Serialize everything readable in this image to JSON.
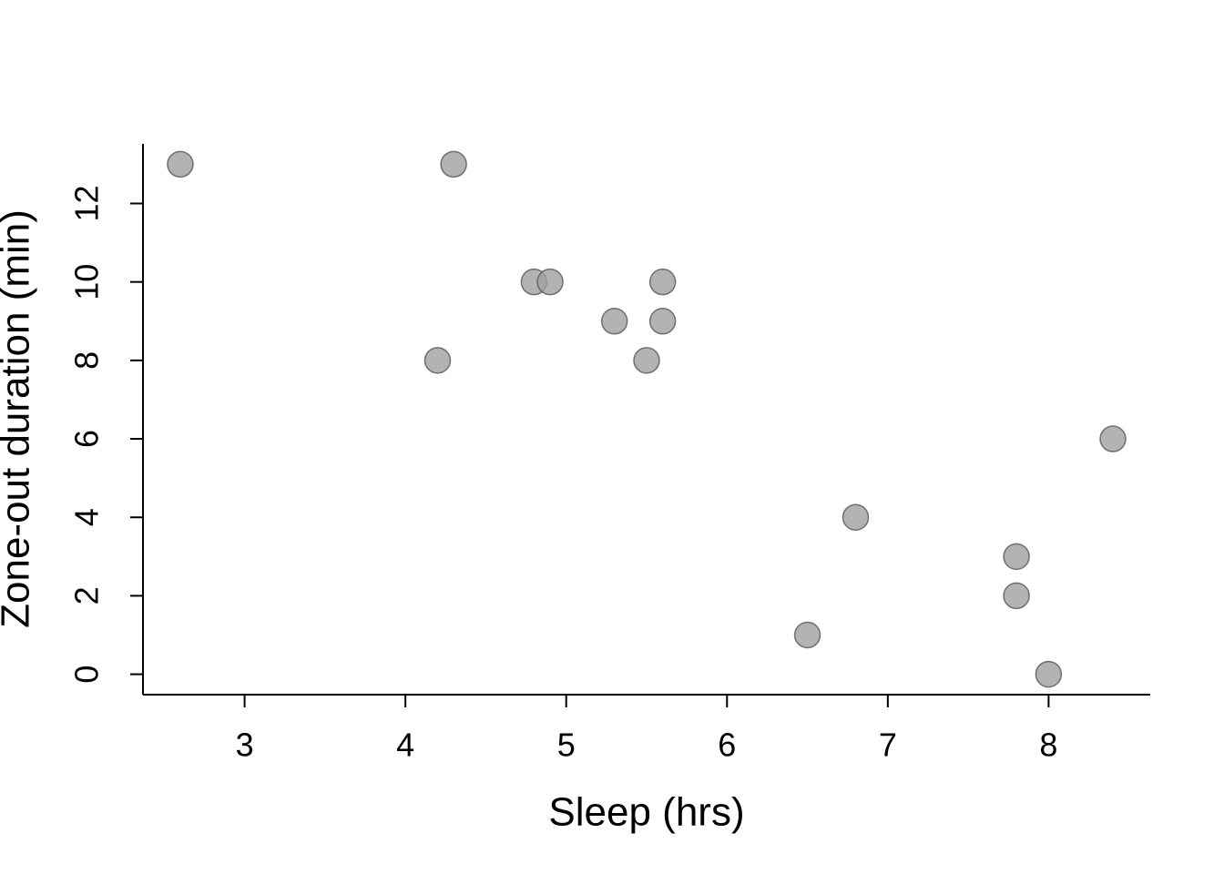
{
  "chart_data": {
    "type": "scatter",
    "x_label": "Sleep (hrs)",
    "y_label": "Zone-out duration (min)",
    "x": [
      2.6,
      4.3,
      4.8,
      4.9,
      5.6,
      5.3,
      5.6,
      4.2,
      5.5,
      8.4,
      6.8,
      7.8,
      7.8,
      6.5,
      8.0
    ],
    "values": [
      13,
      13,
      10,
      10,
      10,
      9,
      9,
      8,
      8,
      6,
      4,
      3,
      2,
      1,
      0
    ],
    "color": "#a0a0a0",
    "xlim": [
      2.368,
      8.632
    ],
    "xticks": [
      3,
      4,
      5,
      6,
      7,
      8
    ],
    "ylim": [
      -0.52,
      13.52
    ],
    "yticks": [
      0,
      2,
      4,
      6,
      8,
      10,
      12
    ],
    "grid": false
  }
}
